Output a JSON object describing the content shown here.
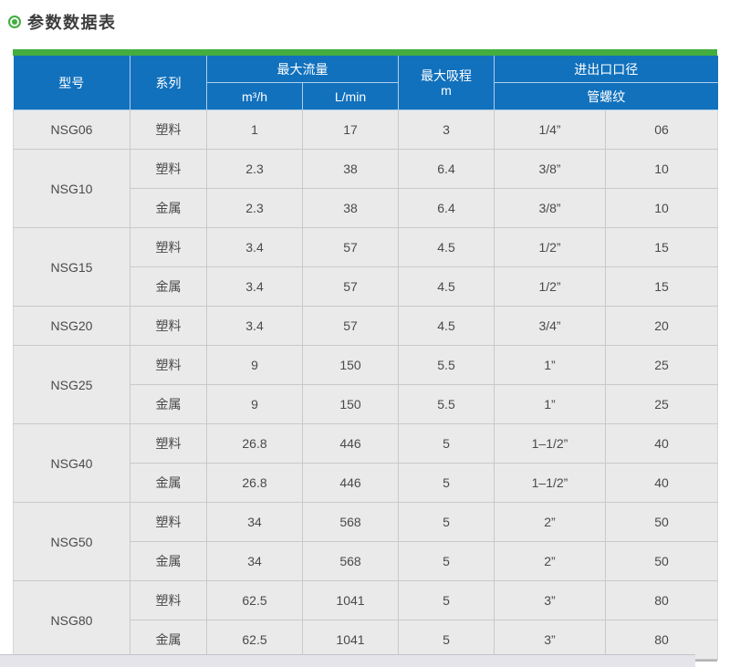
{
  "title": {
    "text": "参数数据表"
  },
  "colors": {
    "accent_green": "#43ad3f",
    "header_blue": "#1171bd",
    "cell_bg": "#eaeaea",
    "cell_border": "#c9c9c9"
  },
  "table": {
    "headers": {
      "model": "型号",
      "series": "系列",
      "max_flow": "最大流量",
      "flow_unit_m3h": "m³/h",
      "flow_unit_lmin": "L/min",
      "max_suction_line1": "最大吸程",
      "max_suction_line2": "m",
      "port_size": "进出口口径",
      "pipe_thread": "管螺纹"
    },
    "groups": [
      {
        "model": "NSG06",
        "rows": [
          {
            "series": "塑料",
            "m3h": "1",
            "lmin": "17",
            "suction": "3",
            "thread": "1/4”",
            "size": "06"
          }
        ]
      },
      {
        "model": "NSG10",
        "rows": [
          {
            "series": "塑料",
            "m3h": "2.3",
            "lmin": "38",
            "suction": "6.4",
            "thread": "3/8”",
            "size": "10"
          },
          {
            "series": "金属",
            "m3h": "2.3",
            "lmin": "38",
            "suction": "6.4",
            "thread": "3/8”",
            "size": "10"
          }
        ]
      },
      {
        "model": "NSG15",
        "rows": [
          {
            "series": "塑料",
            "m3h": "3.4",
            "lmin": "57",
            "suction": "4.5",
            "thread": "1/2”",
            "size": "15"
          },
          {
            "series": "金属",
            "m3h": "3.4",
            "lmin": "57",
            "suction": "4.5",
            "thread": "1/2”",
            "size": "15"
          }
        ]
      },
      {
        "model": "NSG20",
        "rows": [
          {
            "series": "塑料",
            "m3h": "3.4",
            "lmin": "57",
            "suction": "4.5",
            "thread": "3/4”",
            "size": "20"
          }
        ]
      },
      {
        "model": "NSG25",
        "rows": [
          {
            "series": "塑料",
            "m3h": "9",
            "lmin": "150",
            "suction": "5.5",
            "thread": "1”",
            "size": "25"
          },
          {
            "series": "金属",
            "m3h": "9",
            "lmin": "150",
            "suction": "5.5",
            "thread": "1”",
            "size": "25"
          }
        ]
      },
      {
        "model": "NSG40",
        "rows": [
          {
            "series": "塑料",
            "m3h": "26.8",
            "lmin": "446",
            "suction": "5",
            "thread": "1–1/2”",
            "size": "40"
          },
          {
            "series": "金属",
            "m3h": "26.8",
            "lmin": "446",
            "suction": "5",
            "thread": "1–1/2”",
            "size": "40"
          }
        ]
      },
      {
        "model": "NSG50",
        "rows": [
          {
            "series": "塑料",
            "m3h": "34",
            "lmin": "568",
            "suction": "5",
            "thread": "2”",
            "size": "50"
          },
          {
            "series": "金属",
            "m3h": "34",
            "lmin": "568",
            "suction": "5",
            "thread": "2”",
            "size": "50"
          }
        ]
      },
      {
        "model": "NSG80",
        "rows": [
          {
            "series": "塑料",
            "m3h": "62.5",
            "lmin": "1041",
            "suction": "5",
            "thread": "3”",
            "size": "80"
          },
          {
            "series": "金属",
            "m3h": "62.5",
            "lmin": "1041",
            "suction": "5",
            "thread": "3”",
            "size": "80"
          }
        ]
      }
    ]
  }
}
